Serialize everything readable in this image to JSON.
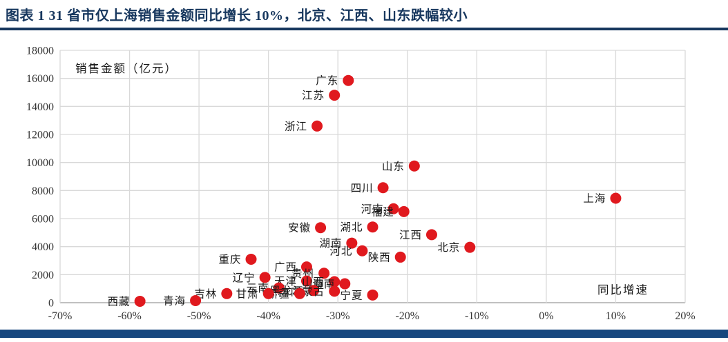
{
  "page": {
    "title": "图表 1  31 省市仅上海销售金额同比增长 10%，北京、江西、山东跌幅较小"
  },
  "colors": {
    "title_navy": "#17375E",
    "bottom_bar_navy": "#17477E",
    "point_red": "#E0191E",
    "grid_gray": "#D9D9D9",
    "axis_gray": "#9B9B9B",
    "tick_text": "#333333",
    "label_text": "#1A1A1A"
  },
  "chart_data": {
    "type": "scatter",
    "title": "",
    "xlabel": "同比增速",
    "ylabel": "销售金额（亿元）",
    "xlim": [
      -70,
      20
    ],
    "xstep": 10,
    "x_tick_labels": [
      "-70%",
      "-60%",
      "-50%",
      "-40%",
      "-30%",
      "-20%",
      "-10%",
      "0%",
      "10%",
      "20%"
    ],
    "ylim": [
      0,
      18000
    ],
    "ystep": 2000,
    "y_tick_labels": [
      "0",
      "2000",
      "4000",
      "6000",
      "8000",
      "10000",
      "12000",
      "14000",
      "16000",
      "18000"
    ],
    "grid": true,
    "legend": "none",
    "points": [
      {
        "name": "广东",
        "growth_pct": -28.5,
        "sales_yi": 15850
      },
      {
        "name": "江苏",
        "growth_pct": -30.5,
        "sales_yi": 14800
      },
      {
        "name": "浙江",
        "growth_pct": -33.0,
        "sales_yi": 12600
      },
      {
        "name": "山东",
        "growth_pct": -19.0,
        "sales_yi": 9750
      },
      {
        "name": "四川",
        "growth_pct": -23.5,
        "sales_yi": 8200
      },
      {
        "name": "上海",
        "growth_pct": 10.0,
        "sales_yi": 7450
      },
      {
        "name": "河南",
        "growth_pct": -22.0,
        "sales_yi": 6700
      },
      {
        "name": "福建",
        "growth_pct": -20.5,
        "sales_yi": 6500
      },
      {
        "name": "湖北",
        "growth_pct": -25.0,
        "sales_yi": 5400
      },
      {
        "name": "安徽",
        "growth_pct": -32.5,
        "sales_yi": 5350
      },
      {
        "name": "江西",
        "growth_pct": -16.5,
        "sales_yi": 4850
      },
      {
        "name": "湖南",
        "growth_pct": -28.0,
        "sales_yi": 4250
      },
      {
        "name": "北京",
        "growth_pct": -11.0,
        "sales_yi": 3950
      },
      {
        "name": "河北",
        "growth_pct": -26.5,
        "sales_yi": 3700
      },
      {
        "name": "陕西",
        "growth_pct": -21.0,
        "sales_yi": 3250
      },
      {
        "name": "重庆",
        "growth_pct": -42.5,
        "sales_yi": 3100
      },
      {
        "name": "广西",
        "growth_pct": -34.5,
        "sales_yi": 2550
      },
      {
        "name": "贵州",
        "growth_pct": -32.0,
        "sales_yi": 2100
      },
      {
        "name": "辽宁",
        "growth_pct": -40.5,
        "sales_yi": 1800
      },
      {
        "name": "天津",
        "growth_pct": -34.5,
        "sales_yi": 1550
      },
      {
        "name": "山西",
        "growth_pct": -30.5,
        "sales_yi": 1500
      },
      {
        "name": "海南",
        "growth_pct": -29.0,
        "sales_yi": 1350
      },
      {
        "name": "云南",
        "growth_pct": -38.5,
        "sales_yi": 1050
      },
      {
        "name": "黑龙江",
        "growth_pct": -33.5,
        "sales_yi": 870
      },
      {
        "name": "内蒙古",
        "growth_pct": -30.5,
        "sales_yi": 820
      },
      {
        "name": "新疆",
        "growth_pct": -35.5,
        "sales_yi": 650
      },
      {
        "name": "甘肃",
        "growth_pct": -40.0,
        "sales_yi": 650
      },
      {
        "name": "吉林",
        "growth_pct": -46.0,
        "sales_yi": 650
      },
      {
        "name": "宁夏",
        "growth_pct": -25.0,
        "sales_yi": 550
      },
      {
        "name": "青海",
        "growth_pct": -50.5,
        "sales_yi": 150
      },
      {
        "name": "西藏",
        "growth_pct": -58.5,
        "sales_yi": 100
      }
    ]
  }
}
